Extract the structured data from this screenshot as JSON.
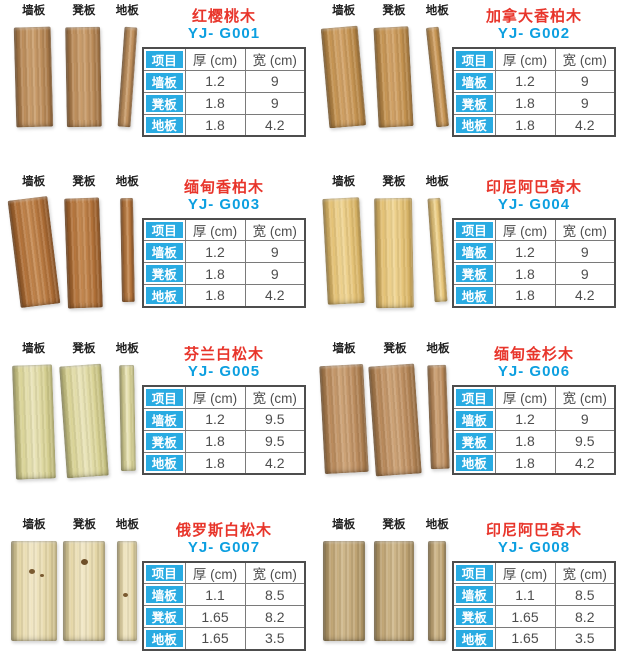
{
  "colors": {
    "page_background": "#ffffff",
    "accent_blue": "#29abe2",
    "title_red": "#e8352b",
    "code_blue": "#0c9fe0",
    "table_text": "#4d4d4d",
    "label_text": "#222222",
    "table_border": "#4d4d4d",
    "table_inner_border": "#7a7a7a"
  },
  "board_types": [
    "墙板",
    "凳板",
    "地板"
  ],
  "table_headers": {
    "item": "项目",
    "thickness": "厚 (cm)",
    "width": "宽 (cm)"
  },
  "products": [
    {
      "name": "红樱桃木",
      "code": "YJ- G001",
      "rows": [
        {
          "label": "墙板",
          "thickness": "1.2",
          "width": "9"
        },
        {
          "label": "凳板",
          "thickness": "1.8",
          "width": "9"
        },
        {
          "label": "地板",
          "thickness": "1.8",
          "width": "4.2"
        }
      ],
      "wood_colors": {
        "light": "#cb9f6e",
        "mid": "#b98a58",
        "dark": "#96693c"
      }
    },
    {
      "name": "加拿大香柏木",
      "code": "YJ- G002",
      "rows": [
        {
          "label": "墙板",
          "thickness": "1.2",
          "width": "9"
        },
        {
          "label": "凳板",
          "thickness": "1.8",
          "width": "9"
        },
        {
          "label": "地板",
          "thickness": "1.8",
          "width": "4.2"
        }
      ],
      "wood_colors": {
        "light": "#d2a369",
        "mid": "#c2914f",
        "dark": "#a3763c"
      }
    },
    {
      "name": "缅甸香柏木",
      "code": "YJ- G003",
      "rows": [
        {
          "label": "墙板",
          "thickness": "1.2",
          "width": "9"
        },
        {
          "label": "凳板",
          "thickness": "1.8",
          "width": "9"
        },
        {
          "label": "地板",
          "thickness": "1.8",
          "width": "4.2"
        }
      ],
      "wood_colors": {
        "light": "#c58a52",
        "mid": "#b07038",
        "dark": "#8f5626"
      }
    },
    {
      "name": "印尼阿巴奇木",
      "code": "YJ- G004",
      "rows": [
        {
          "label": "墙板",
          "thickness": "1.2",
          "width": "9"
        },
        {
          "label": "凳板",
          "thickness": "1.8",
          "width": "9"
        },
        {
          "label": "地板",
          "thickness": "1.8",
          "width": "4.2"
        }
      ],
      "wood_colors": {
        "light": "#f0d695",
        "mid": "#e2bf72",
        "dark": "#c6a257"
      }
    },
    {
      "name": "芬兰白松木",
      "code": "YJ- G005",
      "rows": [
        {
          "label": "墙板",
          "thickness": "1.2",
          "width": "9.5"
        },
        {
          "label": "凳板",
          "thickness": "1.8",
          "width": "9.5"
        },
        {
          "label": "地板",
          "thickness": "1.8",
          "width": "4.2"
        }
      ],
      "wood_colors": {
        "light": "#e9e4b9",
        "mid": "#d9d396",
        "dark": "#bdb878"
      }
    },
    {
      "name": "缅甸金杉木",
      "code": "YJ- G006",
      "rows": [
        {
          "label": "墙板",
          "thickness": "1.2",
          "width": "9"
        },
        {
          "label": "凳板",
          "thickness": "1.8",
          "width": "9.5"
        },
        {
          "label": "地板",
          "thickness": "1.8",
          "width": "4.2"
        }
      ],
      "wood_colors": {
        "light": "#cda377",
        "mid": "#b98a5c",
        "dark": "#9a6f42"
      }
    },
    {
      "name": "俄罗斯白松木",
      "code": "YJ- G007",
      "rows": [
        {
          "label": "墙板",
          "thickness": "1.1",
          "width": "8.5"
        },
        {
          "label": "凳板",
          "thickness": "1.65",
          "width": "8.2"
        },
        {
          "label": "地板",
          "thickness": "1.65",
          "width": "3.5"
        }
      ],
      "wood_colors": {
        "light": "#f1e7c6",
        "mid": "#e5d7a8",
        "dark": "#cbbc8a"
      }
    },
    {
      "name": "印尼阿巴奇木",
      "code": "YJ- G008",
      "rows": [
        {
          "label": "墙板",
          "thickness": "1.1",
          "width": "8.5"
        },
        {
          "label": "凳板",
          "thickness": "1.65",
          "width": "8.2"
        },
        {
          "label": "地板",
          "thickness": "1.65",
          "width": "3.5"
        }
      ],
      "wood_colors": {
        "light": "#cfb88c",
        "mid": "#bfa474",
        "dark": "#a28a5c"
      }
    }
  ]
}
